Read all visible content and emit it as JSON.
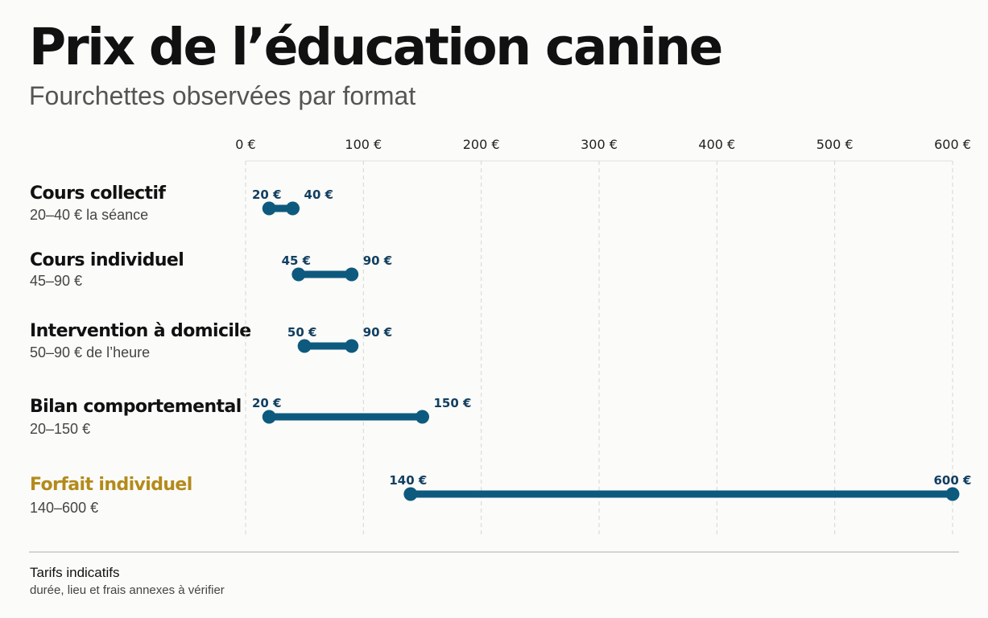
{
  "header": {
    "title": "Prix de l’éducation canine",
    "subtitle": "Fourchettes observées par format"
  },
  "footer": {
    "note_title": "Tarifs indicatifs",
    "note_sub": "durée, lieu et frais annexes à vérifier"
  },
  "colors": {
    "bar": "#0d5a7e",
    "value_label": "#123f61",
    "highlight": "#b38a1b",
    "grid": "#d6d6d6"
  },
  "chart_data": {
    "type": "range",
    "title": "Prix de l’éducation canine",
    "subtitle": "Fourchettes observées par format",
    "xlim": [
      0,
      600
    ],
    "xticks": [
      0,
      100,
      200,
      300,
      400,
      500,
      600
    ],
    "xtick_labels": [
      "0 €",
      "100 €",
      "200 €",
      "300 €",
      "400 €",
      "500 €",
      "600 €"
    ],
    "grid": true,
    "categories": [
      {
        "label": "Cours collectif",
        "sub": "20–40 € la séance",
        "min": 20,
        "max": 40,
        "min_label": "20 €",
        "max_label": "40 €",
        "highlight": false
      },
      {
        "label": "Cours individuel",
        "sub": "45–90 €",
        "min": 45,
        "max": 90,
        "min_label": "45 €",
        "max_label": "90 €",
        "highlight": false
      },
      {
        "label": "Intervention à domicile",
        "sub": "50–90 € de l’heure",
        "min": 50,
        "max": 90,
        "min_label": "50 €",
        "max_label": "90 €",
        "highlight": false
      },
      {
        "label": "Bilan comportemental",
        "sub": "20–150 €",
        "min": 20,
        "max": 150,
        "min_label": "20 €",
        "max_label": "150 €",
        "highlight": false
      },
      {
        "label": "Forfait individuel",
        "sub": "140–600 €",
        "min": 140,
        "max": 600,
        "min_label": "140 €",
        "max_label": "600 €",
        "highlight": true
      }
    ]
  }
}
